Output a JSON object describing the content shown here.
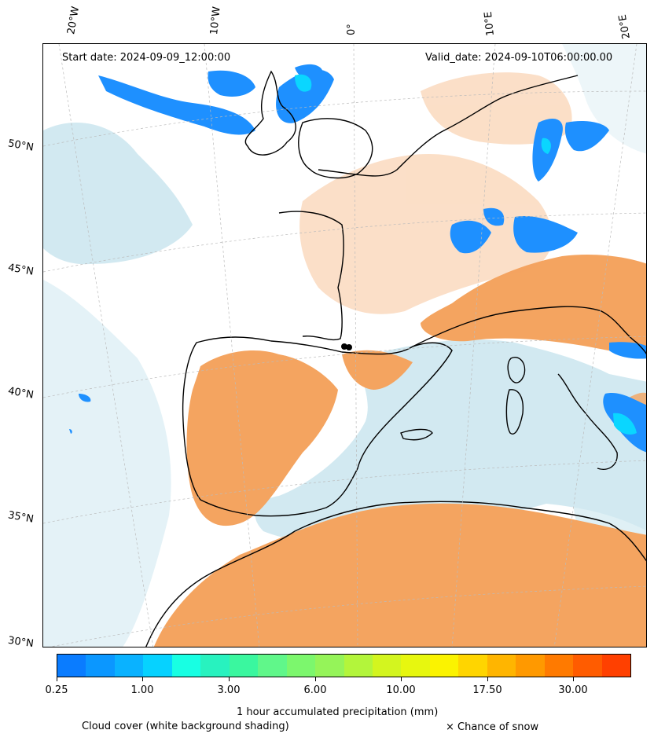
{
  "header": {
    "start_date": "Start date: 2024-09-09_12:00:00",
    "valid_date": "Valid_date: 2024-09-10T06:00:00.00"
  },
  "longitude_labels": [
    "20°W",
    "10°W",
    "0°",
    "10°E",
    "20°E"
  ],
  "latitude_labels": [
    "50°N",
    "45°N",
    "40°N",
    "35°N",
    "30°N"
  ],
  "colorbar": {
    "colors": [
      "#0a7cff",
      "#0b97ff",
      "#0ab2ff",
      "#06d2ff",
      "#18ffe3",
      "#28f2bf",
      "#3af79f",
      "#60f78a",
      "#7cf76d",
      "#95f459",
      "#b3f53b",
      "#d3f51f",
      "#e7f70f",
      "#fbf300",
      "#ffd500",
      "#ffb500",
      "#ff9900",
      "#ff7a00",
      "#ff5c00",
      "#ff4000"
    ],
    "tick_labels": [
      "0.25",
      "1.00",
      "3.00",
      "6.00",
      "10.00",
      "17.50",
      "30.00"
    ],
    "label": "1 hour accumulated precipitation (mm)"
  },
  "legend": {
    "cloud": "Cloud cover (white background shading)",
    "snow": "× Chance of snow"
  },
  "colors": {
    "cloud": "#add8e6",
    "dust": "#f4a460",
    "precip_blue": "#1e90ff",
    "precip_cyan": "#0ad6ff"
  }
}
